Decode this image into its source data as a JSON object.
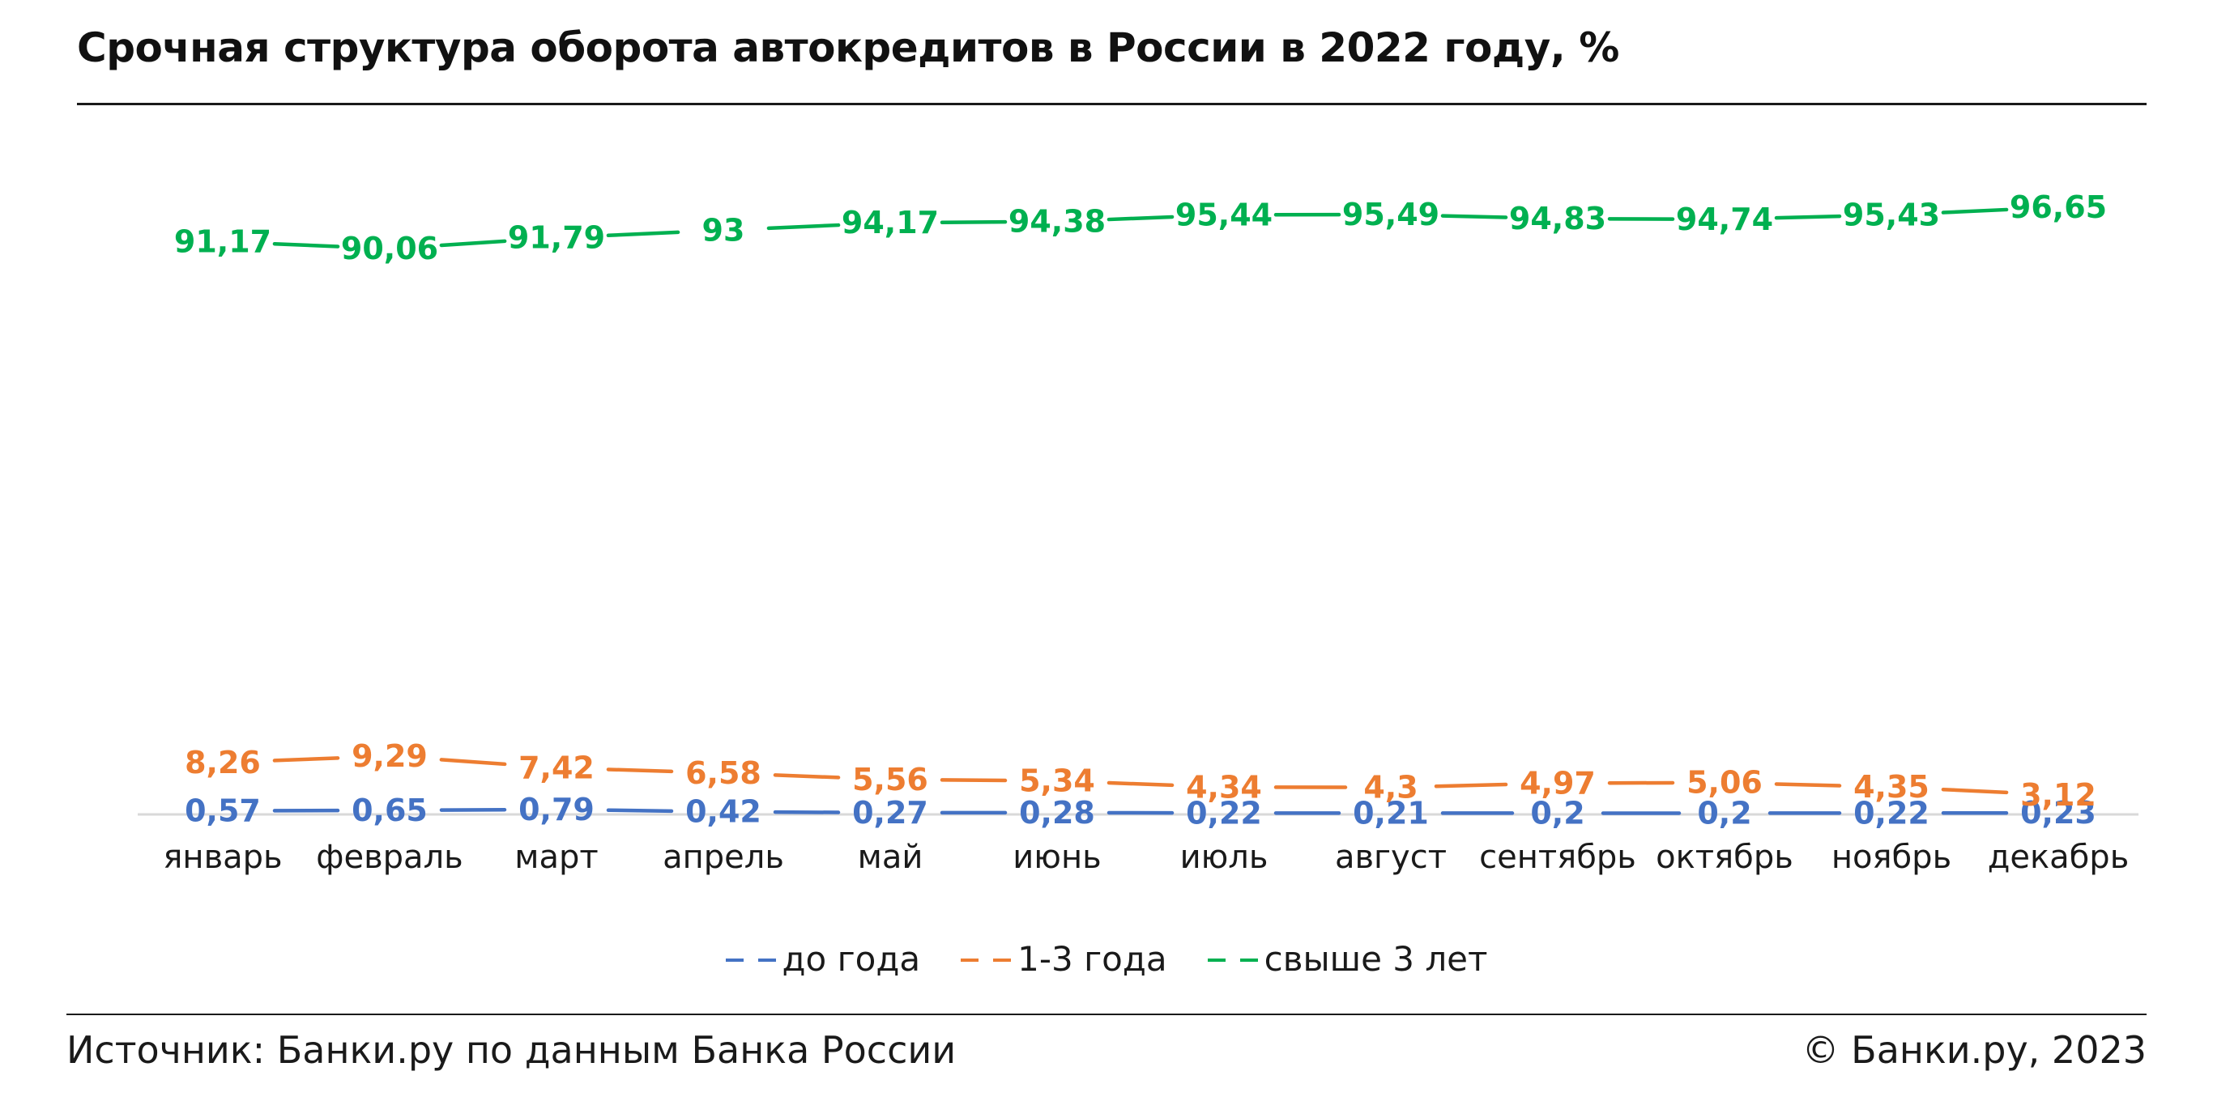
{
  "header": {
    "title": "Срочная структура оборота автокредитов в России в 2022 году, %"
  },
  "footer": {
    "source": "Источник: Банки.ру по данным Банка России",
    "copyright": "© Банки.ру, 2023"
  },
  "chart_data": {
    "type": "line",
    "title": "Срочная структура оборота автокредитов в России в 2022 году, %",
    "xlabel": "",
    "ylabel": "",
    "ylim": [
      0,
      100
    ],
    "grid": false,
    "legend_position": "bottom",
    "categories": [
      "январь",
      "февраль",
      "март",
      "апрель",
      "май",
      "июнь",
      "июль",
      "август",
      "сентябрь",
      "октябрь",
      "ноябрь",
      "декабрь"
    ],
    "series": [
      {
        "name": "до года",
        "color": "#4472c4",
        "values": [
          0.57,
          0.65,
          0.79,
          0.42,
          0.27,
          0.28,
          0.22,
          0.21,
          0.2,
          0.2,
          0.22,
          0.23
        ],
        "labels": [
          "0,57",
          "0,65",
          "0,79",
          "0,42",
          "0,27",
          "0,28",
          "0,22",
          "0,21",
          "0,2",
          "0,2",
          "0,22",
          "0,23"
        ]
      },
      {
        "name": "1-3 года",
        "color": "#ed7d31",
        "values": [
          8.26,
          9.29,
          7.42,
          6.58,
          5.56,
          5.34,
          4.34,
          4.3,
          4.97,
          5.06,
          4.35,
          3.12
        ],
        "labels": [
          "8,26",
          "9,29",
          "7,42",
          "6,58",
          "5,56",
          "5,34",
          "4,34",
          "4,3",
          "4,97",
          "5,06",
          "4,35",
          "3,12"
        ]
      },
      {
        "name": "свыше 3 лет",
        "color": "#00b050",
        "values": [
          91.17,
          90.06,
          91.79,
          93,
          94.17,
          94.38,
          95.44,
          95.49,
          94.83,
          94.74,
          95.43,
          96.65
        ],
        "labels": [
          "91,17",
          "90,06",
          "91,79",
          "93",
          "94,17",
          "94,38",
          "95,44",
          "95,49",
          "94,83",
          "94,74",
          "95,43",
          "96,65"
        ]
      }
    ]
  }
}
